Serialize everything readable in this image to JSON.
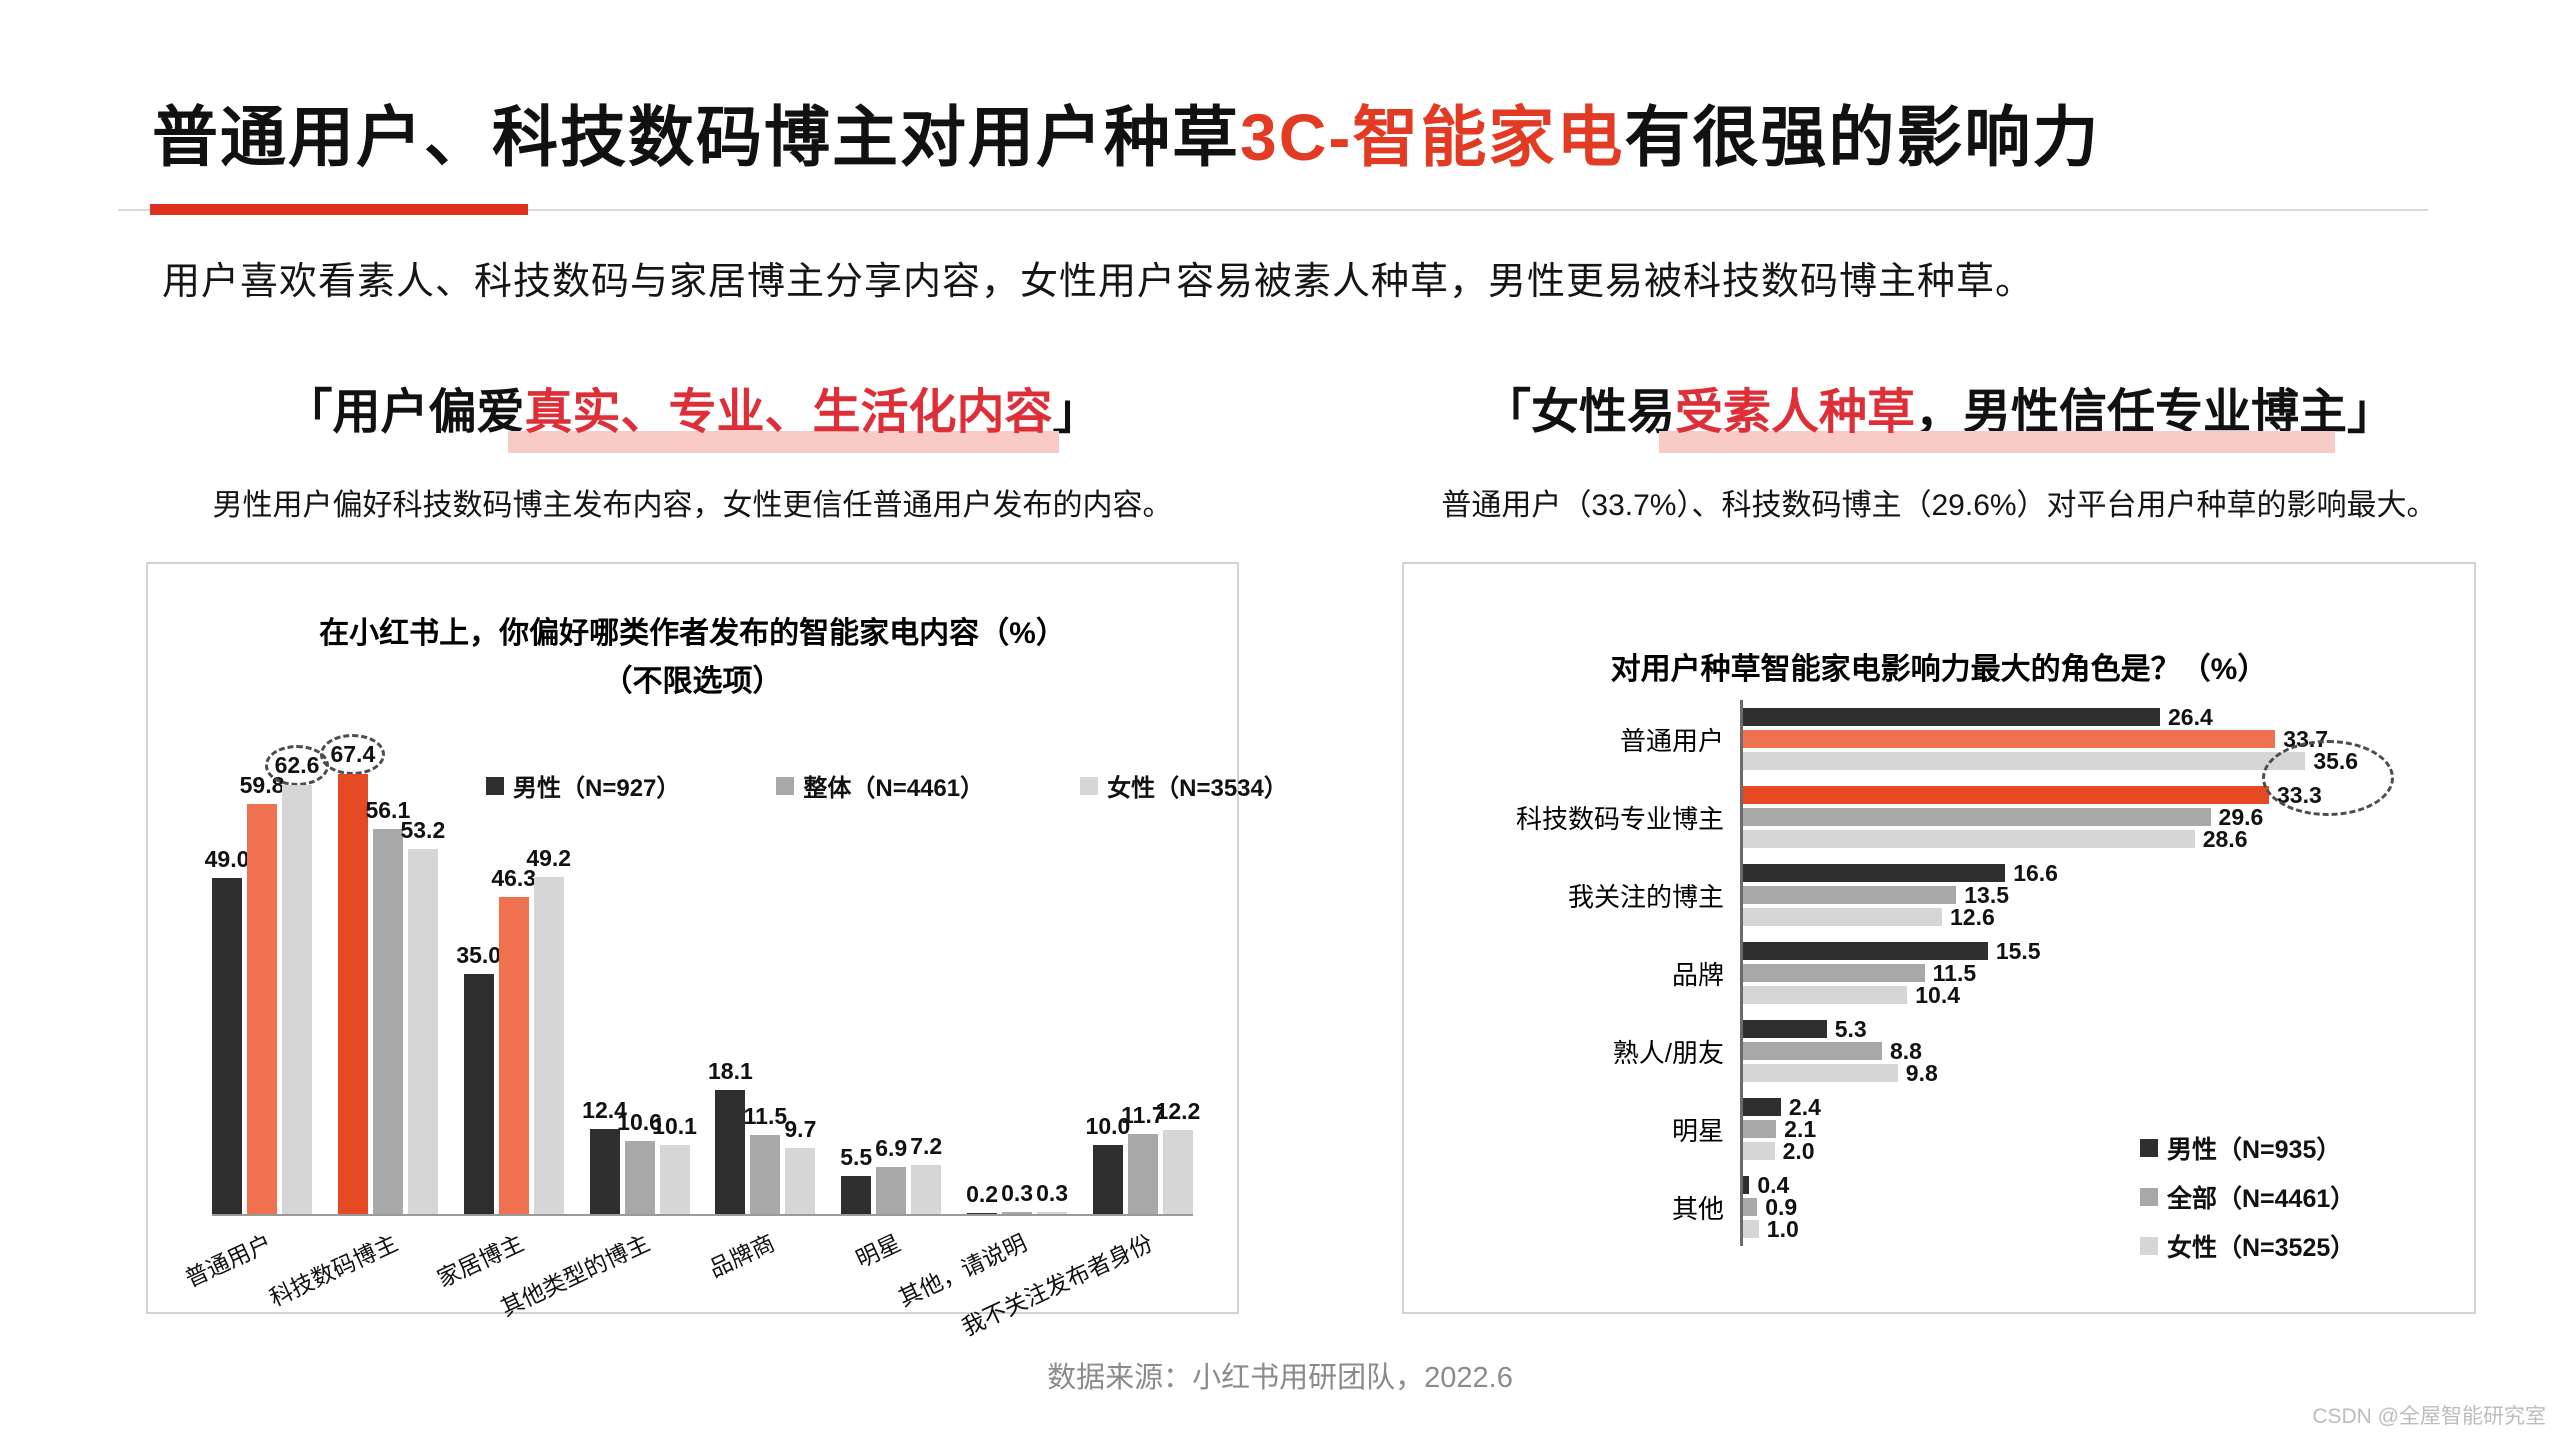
{
  "page": {
    "title": {
      "black1": "普通用户、科技数码博主对用户种草",
      "accent": "3C-智能家电",
      "black2": "有很强的影响力"
    },
    "subtitle": "用户喜欢看素人、科技数码与家居博主分享内容，女性用户容易被素人种草，男性更易被科技数码博主种草。",
    "footer": "数据来源：小红书用研团队，2022.6",
    "watermark": "CSDN @全屋智能研究室"
  },
  "left_section": {
    "heading": {
      "pre": "「用户偏爱",
      "red": "真实、专业、生活化内容",
      "post": "」"
    },
    "desc": "男性用户偏好科技数码博主发布内容，女性更信任普通用户发布的内容。"
  },
  "right_section": {
    "heading": {
      "pre": "「女性易",
      "red": "受素人种草",
      "post": "，男性信任专业博主」"
    },
    "desc": "普通用户（33.7%）、科技数码博主（29.6%）对平台用户种草的影响最大。"
  },
  "colors": {
    "accent_deep": "#E54A22",
    "accent_light": "#EF7150",
    "male_bar": "#2E2E2E",
    "overall_bar": "#A8A8A8",
    "female_bar": "#D6D6D6",
    "heading_red": "#DE2F38",
    "pink_highlight": "#F9CBC6",
    "title_underline": "#E0301E"
  },
  "chart_data": [
    {
      "type": "bar",
      "title_line1": "在小红书上，你偏好哪类作者发布的智能家电内容（%）",
      "title_line2": "（不限选项）",
      "xlabel": "",
      "ylabel": "",
      "ylim": [
        0,
        70
      ],
      "grid": false,
      "legend_position": "top-inside",
      "categories": [
        "普通用户",
        "科技数码博主",
        "家居博主",
        "其他类型的博主",
        "品牌商",
        "明星",
        "其他，请说明",
        "我不关注发布者身份"
      ],
      "series": [
        {
          "name": "男性（N=927）",
          "values": [
            49.0,
            67.4,
            35.0,
            12.4,
            18.1,
            5.5,
            0.2,
            10.0
          ]
        },
        {
          "name": "整体（N=4461）",
          "values": [
            59.8,
            56.1,
            46.3,
            10.6,
            11.5,
            6.9,
            0.3,
            11.7
          ]
        },
        {
          "name": "女性（N=3534）",
          "values": [
            62.6,
            53.2,
            49.2,
            10.1,
            9.7,
            7.2,
            0.3,
            12.2
          ]
        }
      ],
      "highlights": {
        "accent_deep": [
          [
            0,
            1
          ]
        ],
        "accent_light": [
          [
            1,
            0
          ],
          [
            1,
            2
          ]
        ]
      },
      "circled": [
        [
          2,
          0
        ],
        [
          0,
          1
        ]
      ]
    },
    {
      "type": "bar",
      "orientation": "horizontal",
      "title_line1": "对用户种草智能家电影响力最大的角色是？（%）",
      "xlabel": "",
      "ylabel": "",
      "xlim": [
        0,
        44
      ],
      "grid": false,
      "legend_position": "bottom-right-inside",
      "categories": [
        "普通用户",
        "科技数码专业博主",
        "我关注的博主",
        "品牌",
        "熟人/朋友",
        "明星",
        "其他"
      ],
      "series": [
        {
          "name": "男性（N=935）",
          "values": [
            26.4,
            33.3,
            16.6,
            15.5,
            5.3,
            2.4,
            0.4
          ]
        },
        {
          "name": "全部（N=4461）",
          "values": [
            33.7,
            29.6,
            13.5,
            11.5,
            8.8,
            2.1,
            0.9
          ]
        },
        {
          "name": "女性（N=3525）",
          "values": [
            35.6,
            28.6,
            12.6,
            10.4,
            9.8,
            2.0,
            1.0
          ]
        }
      ],
      "highlights": {
        "accent_deep": [
          [
            0,
            1
          ]
        ],
        "accent_light": [
          [
            1,
            0
          ]
        ]
      },
      "circled": [
        [
          2,
          0
        ],
        [
          0,
          1
        ]
      ]
    }
  ]
}
